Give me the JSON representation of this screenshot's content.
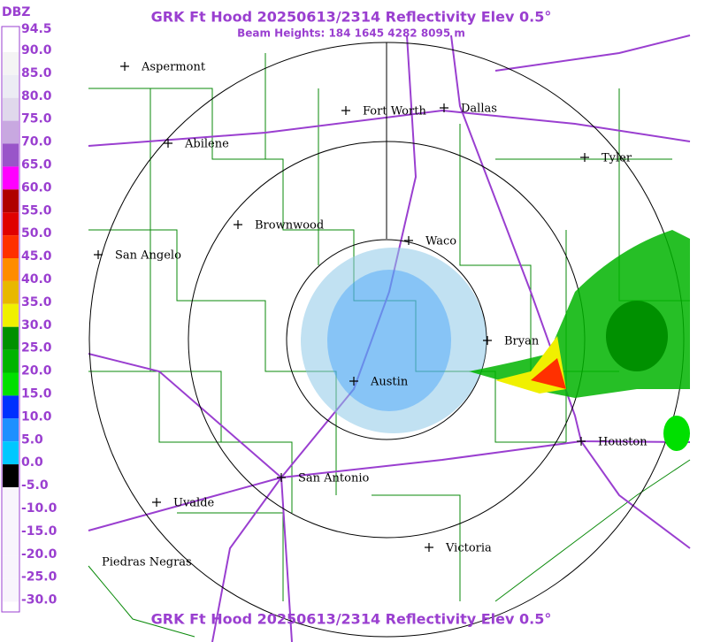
{
  "header": {
    "title": "GRK Ft Hood 20250613/2314 Reflectivity Elev 0.5°",
    "subtitle": "Beam Heights: 184 1645 4282 8095 m"
  },
  "legend": {
    "unit": "DBZ",
    "labels": [
      "94.5",
      "90.0",
      "85.0",
      "80.0",
      "75.0",
      "70.0",
      "65.0",
      "60.0",
      "55.0",
      "50.0",
      "45.0",
      "40.0",
      "35.0",
      "30.0",
      "25.0",
      "20.0",
      "15.0",
      "10.0",
      "5.0",
      "0.0",
      "-5.0",
      "-10.0",
      "-15.0",
      "-20.0",
      "-25.0",
      "-30.0"
    ],
    "colors": [
      "#ffffff",
      "#f4f4f4",
      "#ececf4",
      "#e0d8ec",
      "#c8a8e0",
      "#9955c9",
      "#ff00ff",
      "#b00000",
      "#e00000",
      "#ff3000",
      "#ff8c00",
      "#e8b800",
      "#f0f000",
      "#009000",
      "#00b400",
      "#00e000",
      "#0030ff",
      "#1e90ff",
      "#00c8ff",
      "#000000",
      "#f8f4fc",
      "#f8f4fc",
      "#f8f4fc",
      "#f8f4fc",
      "#f8f4fc"
    ]
  },
  "cities": [
    {
      "name": "Aspermont",
      "plus": true
    },
    {
      "name": "Fort Worth",
      "plus": true
    },
    {
      "name": "Dallas",
      "plus": true
    },
    {
      "name": "Abilene",
      "plus": true
    },
    {
      "name": "Tyler",
      "plus": true
    },
    {
      "name": "Brownwood",
      "plus": true
    },
    {
      "name": "Waco",
      "plus": true
    },
    {
      "name": "San Angelo",
      "plus": true
    },
    {
      "name": "Bryan",
      "plus": true
    },
    {
      "name": "Austin",
      "plus": true
    },
    {
      "name": "Houston",
      "plus": true
    },
    {
      "name": "San Antonio",
      "plus": true
    },
    {
      "name": "Uvalde",
      "plus": true
    },
    {
      "name": "Victoria",
      "plus": true
    },
    {
      "name": "Piedras Negras",
      "plus": false
    }
  ],
  "footer": {
    "title": "GRK Ft Hood 20250613/2314 Reflectivity Elev 0.5°"
  }
}
